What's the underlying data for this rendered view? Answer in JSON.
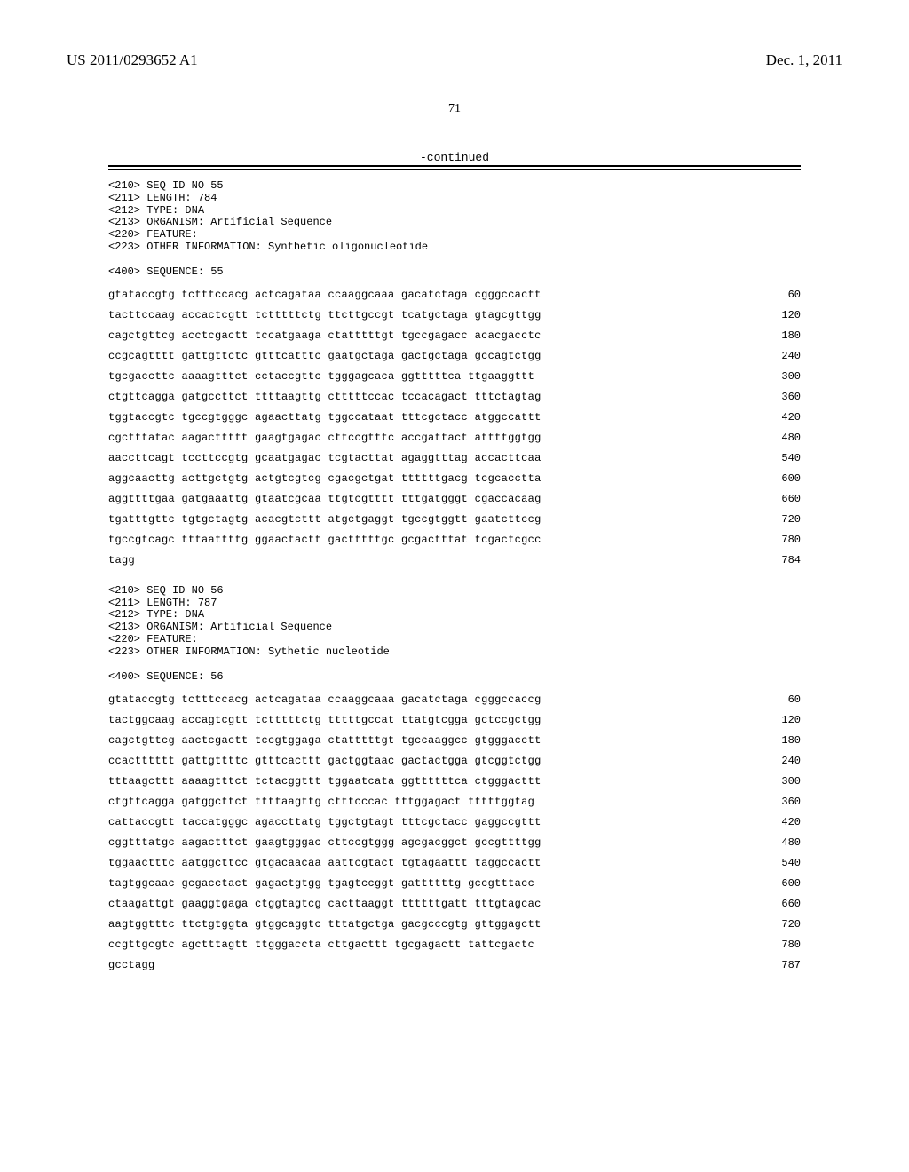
{
  "header": {
    "pub_number": "US 2011/0293652 A1",
    "pub_date": "Dec. 1, 2011",
    "page_number": "71",
    "continued_label": "-continued"
  },
  "sequences": [
    {
      "meta": [
        "<210> SEQ ID NO 55",
        "<211> LENGTH: 784",
        "<212> TYPE: DNA",
        "<213> ORGANISM: Artificial Sequence",
        "<220> FEATURE:",
        "<223> OTHER INFORMATION: Synthetic oligonucleotide"
      ],
      "seq_header": "<400> SEQUENCE: 55",
      "rows": [
        {
          "text": "gtataccgtg tctttccacg actcagataa ccaaggcaaa gacatctaga cgggccactt",
          "pos": "60"
        },
        {
          "text": "tacttccaag accactcgtt tctttttctg ttcttgccgt tcatgctaga gtagcgttgg",
          "pos": "120"
        },
        {
          "text": "cagctgttcg acctcgactt tccatgaaga ctatttttgt tgccgagacc acacgacctc",
          "pos": "180"
        },
        {
          "text": "ccgcagtttt gattgttctc gtttcatttc gaatgctaga gactgctaga gccagtctgg",
          "pos": "240"
        },
        {
          "text": "tgcgaccttc aaaagtttct cctaccgttc tgggagcaca ggtttttca ttgaaggttt",
          "pos": "300"
        },
        {
          "text": "ctgttcagga gatgccttct ttttaagttg ctttttccac tccacagact tttctagtag",
          "pos": "360"
        },
        {
          "text": "tggtaccgtc tgccgtgggc agaacttatg tggccataat tttcgctacc atggccattt",
          "pos": "420"
        },
        {
          "text": "cgctttatac aagacttttt gaagtgagac cttccgtttc accgattact attttggtgg",
          "pos": "480"
        },
        {
          "text": "aaccttcagt tccttccgtg gcaatgagac tcgtacttat agaggtttag accacttcaa",
          "pos": "540"
        },
        {
          "text": "aggcaacttg acttgctgtg actgtcgtcg cgacgctgat ttttttgacg tcgcacctta",
          "pos": "600"
        },
        {
          "text": "aggttttgaa gatgaaattg gtaatcgcaa ttgtcgtttt tttgatgggt cgaccacaag",
          "pos": "660"
        },
        {
          "text": "tgatttgttc tgtgctagtg acacgtcttt atgctgaggt tgccgtggtt gaatcttccg",
          "pos": "720"
        },
        {
          "text": "tgccgtcagc tttaattttg ggaactactt gactttttgc gcgactttat tcgactcgcc",
          "pos": "780"
        },
        {
          "text": "tagg",
          "pos": "784"
        }
      ]
    },
    {
      "meta": [
        "<210> SEQ ID NO 56",
        "<211> LENGTH: 787",
        "<212> TYPE: DNA",
        "<213> ORGANISM: Artificial Sequence",
        "<220> FEATURE:",
        "<223> OTHER INFORMATION: Sythetic nucleotide"
      ],
      "seq_header": "<400> SEQUENCE: 56",
      "rows": [
        {
          "text": "gtataccgtg tctttccacg actcagataa ccaaggcaaa gacatctaga cgggccaccg",
          "pos": "60"
        },
        {
          "text": "tactggcaag accagtcgtt tctttttctg tttttgccat ttatgtcgga gctccgctgg",
          "pos": "120"
        },
        {
          "text": "cagctgttcg aactcgactt tccgtggaga ctatttttgt tgccaaggcc gtgggacctt",
          "pos": "180"
        },
        {
          "text": "ccactttttt gattgttttc gtttcacttt gactggtaac gactactgga gtcggtctgg",
          "pos": "240"
        },
        {
          "text": "tttaagcttt aaaagtttct tctacggttt tggaatcata ggttttttca ctgggacttt",
          "pos": "300"
        },
        {
          "text": "ctgttcagga gatggcttct ttttaagttg ctttcccac tttggagact tttttggtag",
          "pos": "360"
        },
        {
          "text": "cattaccgtt taccatgggc agaccttatg tggctgtagt tttcgctacc gaggccgttt",
          "pos": "420"
        },
        {
          "text": "cggtttatgc aagactttct gaagtgggac cttccgtggg agcgacggct gccgttttgg",
          "pos": "480"
        },
        {
          "text": "tggaactttc aatggcttcc gtgacaacaa aattcgtact tgtagaattt taggccactt",
          "pos": "540"
        },
        {
          "text": "tagtggcaac gcgacctact gagactgtgg tgagtccggt gattttttg gccgtttacc",
          "pos": "600"
        },
        {
          "text": "ctaagattgt gaaggtgaga ctggtagtcg cacttaaggt ttttttgatt tttgtagcac",
          "pos": "660"
        },
        {
          "text": "aagtggtttc ttctgtggta gtggcaggtc tttatgctga gacgcccgtg gttggagctt",
          "pos": "720"
        },
        {
          "text": "ccgttgcgtc agctttagtt ttgggaccta cttgacttt tgcgagactt tattcgactc",
          "pos": "780"
        },
        {
          "text": "gcctagg",
          "pos": "787"
        }
      ]
    }
  ]
}
